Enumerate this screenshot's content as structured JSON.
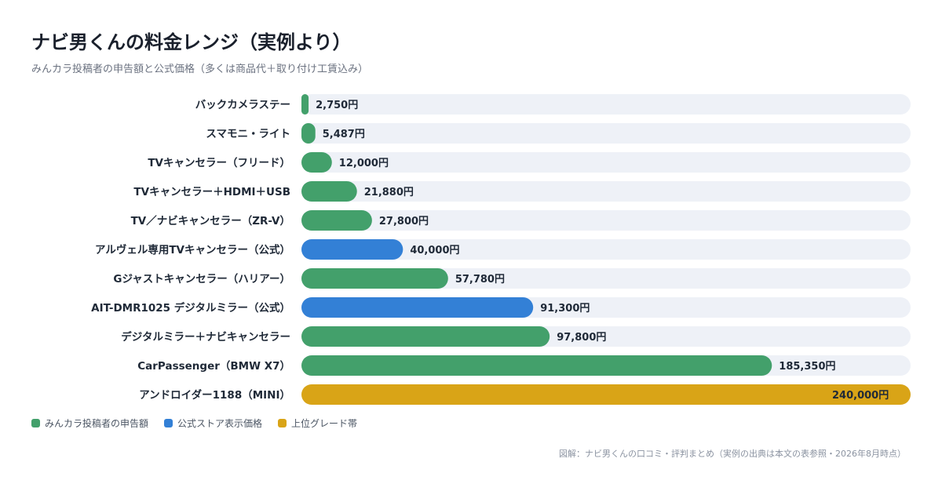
{
  "header": {
    "title": "ナビ男くんの料金レンジ（実例より）",
    "subtitle": "みんカラ投稿者の申告額と公式価格（多くは商品代＋取り付け工賃込み）"
  },
  "colors": {
    "self_report": "#43a06b",
    "official": "#3380d6",
    "high_grade": "#d9a417",
    "track": "#eef1f7"
  },
  "legend": [
    {
      "label": "みんカラ投稿者の申告額",
      "color_key": "self_report"
    },
    {
      "label": "公式ストア表示価格",
      "color_key": "official"
    },
    {
      "label": "上位グレード帯",
      "color_key": "high_grade"
    }
  ],
  "chart_data": {
    "type": "bar",
    "orientation": "horizontal",
    "xlim": [
      0,
      240000
    ],
    "grid": false,
    "legend_position": "bottom-left",
    "categories": [
      "バックカメラステー",
      "スマモニ・ライト",
      "TVキャンセラー（フリード）",
      "TVキャンセラー＋HDMI＋USB",
      "TV／ナビキャンセラー（ZR-V）",
      "アルヴェル専用TVキャンセラー（公式）",
      "Gジャストキャンセラー（ハリアー）",
      "AIT-DMR1025 デジタルミラー（公式）",
      "デジタルミラー＋ナビキャンセラー",
      "CarPassenger（BMW X7）",
      "アンドロイダー1188（MINI）"
    ],
    "values": [
      2750,
      5487,
      12000,
      21880,
      27800,
      40000,
      57780,
      91300,
      97800,
      185350,
      240000
    ],
    "value_labels": [
      "2,750円",
      "5,487円",
      "12,000円",
      "21,880円",
      "27,800円",
      "40,000円",
      "57,780円",
      "91,300円",
      "97,800円",
      "185,350円",
      "240,000円"
    ],
    "groups": [
      "self_report",
      "self_report",
      "self_report",
      "self_report",
      "self_report",
      "official",
      "self_report",
      "official",
      "self_report",
      "self_report",
      "high_grade"
    ]
  },
  "footer": {
    "source": "図解：ナビ男くんの口コミ・評判まとめ（実例の出典は本文の表参照・2026年8月時点）"
  }
}
